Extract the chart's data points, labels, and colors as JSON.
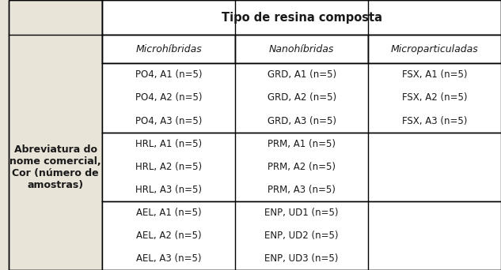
{
  "title": "Tipo de resina composta",
  "col_headers": [
    "Microhíbridas",
    "Nanohíbridas",
    "Microparticuladas"
  ],
  "row_label": "Abreviatura do\nnome comercial,\nCor (número de\namostras)",
  "groups": [
    {
      "rows": [
        [
          "PO4, A1 (n=5)",
          "GRD, A1 (n=5)",
          "FSX, A1 (n=5)"
        ],
        [
          "PO4, A2 (n=5)",
          "GRD, A2 (n=5)",
          "FSX, A2 (n=5)"
        ],
        [
          "PO4, A3 (n=5)",
          "GRD, A3 (n=5)",
          "FSX, A3 (n=5)"
        ]
      ]
    },
    {
      "rows": [
        [
          "HRL, A1 (n=5)",
          "PRM, A1 (n=5)",
          ""
        ],
        [
          "HRL, A2 (n=5)",
          "PRM, A2 (n=5)",
          ""
        ],
        [
          "HRL, A3 (n=5)",
          "PRM, A3 (n=5)",
          ""
        ]
      ]
    },
    {
      "rows": [
        [
          "AEL, A1 (n=5)",
          "ENP, UD1 (n=5)",
          ""
        ],
        [
          "AEL, A2 (n=5)",
          "ENP, UD2 (n=5)",
          ""
        ],
        [
          "AEL, A3 (n=5)",
          "ENP, UD3 (n=5)",
          ""
        ]
      ]
    }
  ],
  "bg_color": "#e8e4d8",
  "table_bg": "#ffffff",
  "border_color": "#000000",
  "text_color": "#1a1a1a",
  "header_bg": "#ffffff",
  "cell_font_size": 8.5,
  "header_font_size": 9.0,
  "title_font_size": 10.5,
  "row_label_font_size": 9.0
}
